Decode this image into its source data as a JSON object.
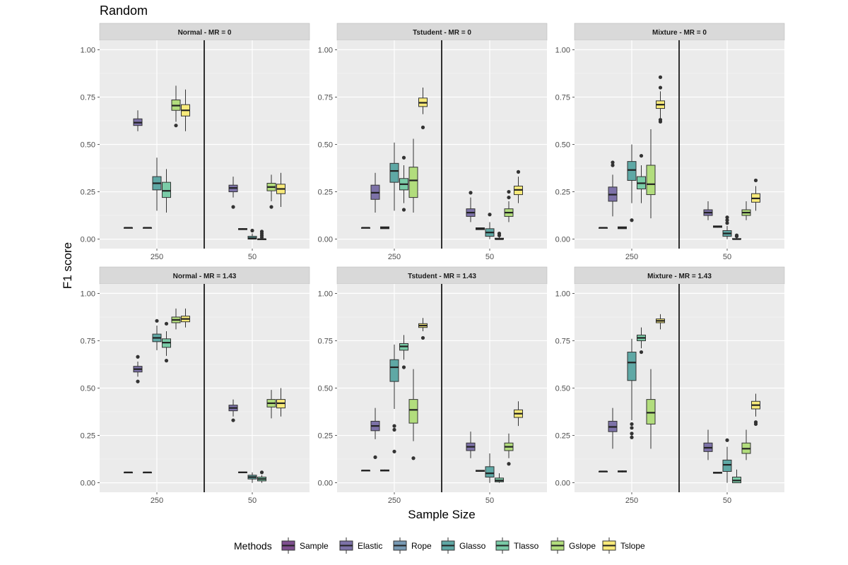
{
  "chart_data": {
    "type": "boxplot",
    "title": "Random",
    "xlabel": "Sample Size",
    "ylabel": "F1 score",
    "ylim": [
      -0.05,
      1.05
    ],
    "y_ticks": [
      "0.00",
      "0.25",
      "0.50",
      "0.75",
      "1.00"
    ],
    "y_tick_values": [
      0,
      0.25,
      0.5,
      0.75,
      1.0
    ],
    "groups": [
      "250",
      "50"
    ],
    "methods": [
      "Sample",
      "Elastic",
      "Rope",
      "Glasso",
      "Tlasso",
      "Gslope",
      "Tslope"
    ],
    "colors": [
      "#7e4f8f",
      "#7d72a8",
      "#7799b3",
      "#5fa8a5",
      "#7acba7",
      "#b2dd7d",
      "#f8ea7a"
    ],
    "legend_title": "Methods",
    "panels": [
      {
        "label": "Normal - MR = 0",
        "groups": [
          [
            {
              "m": 0,
              "q1": 0.06,
              "med": 0.06,
              "q3": 0.06,
              "lo": 0.06,
              "hi": 0.06,
              "out": []
            },
            {
              "m": 1,
              "q1": 0.6,
              "med": 0.615,
              "q3": 0.635,
              "lo": 0.57,
              "hi": 0.68,
              "out": []
            },
            {
              "m": 2,
              "q1": 0.06,
              "med": 0.06,
              "q3": 0.06,
              "lo": 0.06,
              "hi": 0.06,
              "out": []
            },
            {
              "m": 3,
              "q1": 0.26,
              "med": 0.295,
              "q3": 0.33,
              "lo": 0.15,
              "hi": 0.43,
              "out": []
            },
            {
              "m": 4,
              "q1": 0.22,
              "med": 0.255,
              "q3": 0.3,
              "lo": 0.14,
              "hi": 0.37,
              "out": []
            },
            {
              "m": 5,
              "q1": 0.68,
              "med": 0.705,
              "q3": 0.735,
              "lo": 0.62,
              "hi": 0.81,
              "out": [
                0.6
              ]
            },
            {
              "m": 6,
              "q1": 0.65,
              "med": 0.68,
              "q3": 0.71,
              "lo": 0.57,
              "hi": 0.79,
              "out": []
            }
          ],
          [
            {
              "m": 1,
              "q1": 0.25,
              "med": 0.27,
              "q3": 0.285,
              "lo": 0.22,
              "hi": 0.33,
              "out": [
                0.17
              ]
            },
            {
              "m": 2,
              "q1": 0.05,
              "med": 0.053,
              "q3": 0.056,
              "lo": 0.05,
              "hi": 0.058,
              "out": []
            },
            {
              "m": 3,
              "q1": 0.0,
              "med": 0.005,
              "q3": 0.015,
              "lo": 0.0,
              "hi": 0.03,
              "out": [
                0.045
              ]
            },
            {
              "m": 4,
              "q1": 0.0,
              "med": 0.0,
              "q3": 0.0,
              "lo": 0.0,
              "hi": 0.0,
              "out": [
                0.01,
                0.02,
                0.03,
                0.04
              ]
            },
            {
              "m": 5,
              "q1": 0.255,
              "med": 0.275,
              "q3": 0.295,
              "lo": 0.2,
              "hi": 0.34,
              "out": [
                0.17
              ]
            },
            {
              "m": 6,
              "q1": 0.24,
              "med": 0.265,
              "q3": 0.29,
              "lo": 0.17,
              "hi": 0.35,
              "out": []
            }
          ]
        ]
      },
      {
        "label": "Tstudent - MR = 0",
        "groups": [
          [
            {
              "m": 0,
              "q1": 0.06,
              "med": 0.06,
              "q3": 0.06,
              "lo": 0.06,
              "hi": 0.06,
              "out": []
            },
            {
              "m": 1,
              "q1": 0.21,
              "med": 0.245,
              "q3": 0.285,
              "lo": 0.14,
              "hi": 0.35,
              "out": []
            },
            {
              "m": 2,
              "q1": 0.055,
              "med": 0.06,
              "q3": 0.065,
              "lo": 0.055,
              "hi": 0.065,
              "out": []
            },
            {
              "m": 3,
              "q1": 0.3,
              "med": 0.36,
              "q3": 0.4,
              "lo": 0.15,
              "hi": 0.51,
              "out": []
            },
            {
              "m": 4,
              "q1": 0.26,
              "med": 0.29,
              "q3": 0.32,
              "lo": 0.19,
              "hi": 0.39,
              "out": [
                0.43,
                0.155
              ]
            },
            {
              "m": 5,
              "q1": 0.22,
              "med": 0.31,
              "q3": 0.38,
              "lo": 0.14,
              "hi": 0.53,
              "out": []
            },
            {
              "m": 6,
              "q1": 0.7,
              "med": 0.72,
              "q3": 0.745,
              "lo": 0.66,
              "hi": 0.8,
              "out": [
                0.59
              ]
            }
          ],
          [
            {
              "m": 1,
              "q1": 0.12,
              "med": 0.14,
              "q3": 0.16,
              "lo": 0.09,
              "hi": 0.22,
              "out": [
                0.245
              ]
            },
            {
              "m": 2,
              "q1": 0.05,
              "med": 0.055,
              "q3": 0.06,
              "lo": 0.05,
              "hi": 0.06,
              "out": []
            },
            {
              "m": 3,
              "q1": 0.015,
              "med": 0.035,
              "q3": 0.055,
              "lo": 0.0,
              "hi": 0.09,
              "out": [
                0.13
              ]
            },
            {
              "m": 4,
              "q1": 0.0,
              "med": 0.0,
              "q3": 0.005,
              "lo": 0.0,
              "hi": 0.015,
              "out": [
                0.02,
                0.03
              ]
            },
            {
              "m": 5,
              "q1": 0.12,
              "med": 0.14,
              "q3": 0.16,
              "lo": 0.09,
              "hi": 0.2,
              "out": [
                0.22,
                0.25
              ]
            },
            {
              "m": 6,
              "q1": 0.235,
              "med": 0.26,
              "q3": 0.28,
              "lo": 0.19,
              "hi": 0.33,
              "out": [
                0.355
              ]
            }
          ]
        ]
      },
      {
        "label": "Mixture - MR = 0",
        "groups": [
          [
            {
              "m": 0,
              "q1": 0.06,
              "med": 0.06,
              "q3": 0.06,
              "lo": 0.06,
              "hi": 0.06,
              "out": []
            },
            {
              "m": 1,
              "q1": 0.2,
              "med": 0.235,
              "q3": 0.275,
              "lo": 0.12,
              "hi": 0.34,
              "out": [
                0.39,
                0.405
              ]
            },
            {
              "m": 2,
              "q1": 0.055,
              "med": 0.06,
              "q3": 0.065,
              "lo": 0.055,
              "hi": 0.065,
              "out": []
            },
            {
              "m": 3,
              "q1": 0.31,
              "med": 0.365,
              "q3": 0.41,
              "lo": 0.19,
              "hi": 0.5,
              "out": [
                0.1
              ]
            },
            {
              "m": 4,
              "q1": 0.265,
              "med": 0.295,
              "q3": 0.33,
              "lo": 0.19,
              "hi": 0.39,
              "out": [
                0.44
              ]
            },
            {
              "m": 5,
              "q1": 0.235,
              "med": 0.29,
              "q3": 0.39,
              "lo": 0.11,
              "hi": 0.58,
              "out": []
            },
            {
              "m": 6,
              "q1": 0.69,
              "med": 0.71,
              "q3": 0.73,
              "lo": 0.64,
              "hi": 0.78,
              "out": [
                0.62,
                0.63,
                0.8,
                0.855
              ]
            }
          ],
          [
            {
              "m": 1,
              "q1": 0.125,
              "med": 0.14,
              "q3": 0.155,
              "lo": 0.1,
              "hi": 0.2,
              "out": []
            },
            {
              "m": 2,
              "q1": 0.062,
              "med": 0.066,
              "q3": 0.07,
              "lo": 0.06,
              "hi": 0.07,
              "out": []
            },
            {
              "m": 3,
              "q1": 0.015,
              "med": 0.03,
              "q3": 0.045,
              "lo": 0.0,
              "hi": 0.07,
              "out": [
                0.085,
                0.1,
                0.115
              ]
            },
            {
              "m": 4,
              "q1": 0.0,
              "med": 0.0,
              "q3": 0.003,
              "lo": 0.0,
              "hi": 0.01,
              "out": [
                0.015,
                0.02
              ]
            },
            {
              "m": 5,
              "q1": 0.125,
              "med": 0.14,
              "q3": 0.155,
              "lo": 0.1,
              "hi": 0.2,
              "out": []
            },
            {
              "m": 6,
              "q1": 0.195,
              "med": 0.215,
              "q3": 0.24,
              "lo": 0.15,
              "hi": 0.28,
              "out": [
                0.31
              ]
            }
          ]
        ]
      },
      {
        "label": "Normal - MR = 1.43",
        "groups": [
          [
            {
              "m": 0,
              "q1": 0.055,
              "med": 0.055,
              "q3": 0.055,
              "lo": 0.055,
              "hi": 0.055,
              "out": []
            },
            {
              "m": 1,
              "q1": 0.585,
              "med": 0.6,
              "q3": 0.615,
              "lo": 0.56,
              "hi": 0.64,
              "out": [
                0.535,
                0.665
              ]
            },
            {
              "m": 2,
              "q1": 0.055,
              "med": 0.055,
              "q3": 0.055,
              "lo": 0.055,
              "hi": 0.055,
              "out": []
            },
            {
              "m": 3,
              "q1": 0.745,
              "med": 0.765,
              "q3": 0.785,
              "lo": 0.7,
              "hi": 0.83,
              "out": [
                0.855
              ]
            },
            {
              "m": 4,
              "q1": 0.715,
              "med": 0.74,
              "q3": 0.76,
              "lo": 0.67,
              "hi": 0.8,
              "out": [
                0.645,
                0.84
              ]
            },
            {
              "m": 5,
              "q1": 0.845,
              "med": 0.86,
              "q3": 0.875,
              "lo": 0.81,
              "hi": 0.92,
              "out": []
            },
            {
              "m": 6,
              "q1": 0.85,
              "med": 0.865,
              "q3": 0.88,
              "lo": 0.82,
              "hi": 0.92,
              "out": []
            }
          ],
          [
            {
              "m": 1,
              "q1": 0.38,
              "med": 0.395,
              "q3": 0.41,
              "lo": 0.35,
              "hi": 0.44,
              "out": [
                0.33
              ]
            },
            {
              "m": 2,
              "q1": 0.053,
              "med": 0.055,
              "q3": 0.057,
              "lo": 0.053,
              "hi": 0.057,
              "out": []
            },
            {
              "m": 3,
              "q1": 0.02,
              "med": 0.03,
              "q3": 0.04,
              "lo": 0.0,
              "hi": 0.055,
              "out": []
            },
            {
              "m": 4,
              "q1": 0.01,
              "med": 0.02,
              "q3": 0.03,
              "lo": 0.0,
              "hi": 0.04,
              "out": [
                0.055
              ]
            },
            {
              "m": 5,
              "q1": 0.4,
              "med": 0.42,
              "q3": 0.44,
              "lo": 0.34,
              "hi": 0.49,
              "out": []
            },
            {
              "m": 6,
              "q1": 0.395,
              "med": 0.42,
              "q3": 0.44,
              "lo": 0.35,
              "hi": 0.5,
              "out": []
            }
          ]
        ]
      },
      {
        "label": "Tstudent - MR = 1.43",
        "groups": [
          [
            {
              "m": 0,
              "q1": 0.065,
              "med": 0.065,
              "q3": 0.065,
              "lo": 0.065,
              "hi": 0.065,
              "out": []
            },
            {
              "m": 1,
              "q1": 0.275,
              "med": 0.3,
              "q3": 0.325,
              "lo": 0.23,
              "hi": 0.395,
              "out": [
                0.135
              ]
            },
            {
              "m": 2,
              "q1": 0.062,
              "med": 0.065,
              "q3": 0.068,
              "lo": 0.06,
              "hi": 0.07,
              "out": []
            },
            {
              "m": 3,
              "q1": 0.535,
              "med": 0.61,
              "q3": 0.65,
              "lo": 0.39,
              "hi": 0.73,
              "out": [
                0.28,
                0.3,
                0.165
              ]
            },
            {
              "m": 4,
              "q1": 0.7,
              "med": 0.72,
              "q3": 0.735,
              "lo": 0.65,
              "hi": 0.78,
              "out": [
                0.61
              ]
            },
            {
              "m": 5,
              "q1": 0.315,
              "med": 0.385,
              "q3": 0.44,
              "lo": 0.22,
              "hi": 0.6,
              "out": [
                0.13
              ]
            },
            {
              "m": 6,
              "q1": 0.82,
              "med": 0.83,
              "q3": 0.84,
              "lo": 0.8,
              "hi": 0.87,
              "out": [
                0.765
              ]
            }
          ],
          [
            {
              "m": 1,
              "q1": 0.17,
              "med": 0.19,
              "q3": 0.21,
              "lo": 0.13,
              "hi": 0.27,
              "out": []
            },
            {
              "m": 2,
              "q1": 0.06,
              "med": 0.063,
              "q3": 0.066,
              "lo": 0.06,
              "hi": 0.066,
              "out": []
            },
            {
              "m": 3,
              "q1": 0.03,
              "med": 0.05,
              "q3": 0.085,
              "lo": 0.0,
              "hi": 0.155,
              "out": []
            },
            {
              "m": 4,
              "q1": 0.005,
              "med": 0.012,
              "q3": 0.025,
              "lo": 0.0,
              "hi": 0.05,
              "out": []
            },
            {
              "m": 5,
              "q1": 0.17,
              "med": 0.19,
              "q3": 0.21,
              "lo": 0.13,
              "hi": 0.26,
              "out": [
                0.1
              ]
            },
            {
              "m": 6,
              "q1": 0.345,
              "med": 0.365,
              "q3": 0.385,
              "lo": 0.3,
              "hi": 0.43,
              "out": []
            }
          ]
        ]
      },
      {
        "label": "Mixture - MR = 1.43",
        "groups": [
          [
            {
              "m": 0,
              "q1": 0.06,
              "med": 0.06,
              "q3": 0.06,
              "lo": 0.06,
              "hi": 0.06,
              "out": []
            },
            {
              "m": 1,
              "q1": 0.27,
              "med": 0.295,
              "q3": 0.325,
              "lo": 0.18,
              "hi": 0.395,
              "out": []
            },
            {
              "m": 2,
              "q1": 0.057,
              "med": 0.06,
              "q3": 0.063,
              "lo": 0.055,
              "hi": 0.065,
              "out": []
            },
            {
              "m": 3,
              "q1": 0.54,
              "med": 0.635,
              "q3": 0.69,
              "lo": 0.33,
              "hi": 0.76,
              "out": [
                0.24,
                0.26,
                0.29,
                0.31
              ]
            },
            {
              "m": 4,
              "q1": 0.75,
              "med": 0.765,
              "q3": 0.78,
              "lo": 0.71,
              "hi": 0.82,
              "out": [
                0.69
              ]
            },
            {
              "m": 5,
              "q1": 0.31,
              "med": 0.37,
              "q3": 0.44,
              "lo": 0.18,
              "hi": 0.6,
              "out": []
            },
            {
              "m": 6,
              "q1": 0.845,
              "med": 0.855,
              "q3": 0.865,
              "lo": 0.81,
              "hi": 0.89,
              "out": []
            }
          ],
          [
            {
              "m": 1,
              "q1": 0.165,
              "med": 0.185,
              "q3": 0.21,
              "lo": 0.12,
              "hi": 0.28,
              "out": []
            },
            {
              "m": 2,
              "q1": 0.05,
              "med": 0.053,
              "q3": 0.056,
              "lo": 0.05,
              "hi": 0.056,
              "out": []
            },
            {
              "m": 3,
              "q1": 0.06,
              "med": 0.095,
              "q3": 0.12,
              "lo": 0.0,
              "hi": 0.19,
              "out": [
                0.225
              ]
            },
            {
              "m": 4,
              "q1": 0.0,
              "med": 0.012,
              "q3": 0.03,
              "lo": 0.0,
              "hi": 0.07,
              "out": []
            },
            {
              "m": 5,
              "q1": 0.155,
              "med": 0.18,
              "q3": 0.21,
              "lo": 0.12,
              "hi": 0.28,
              "out": []
            },
            {
              "m": 6,
              "q1": 0.39,
              "med": 0.41,
              "q3": 0.43,
              "lo": 0.35,
              "hi": 0.47,
              "out": [
                0.31,
                0.32
              ]
            }
          ]
        ]
      }
    ]
  }
}
